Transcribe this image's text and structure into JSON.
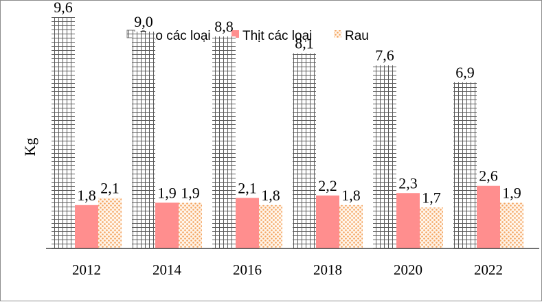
{
  "chart_data": {
    "type": "bar",
    "categories": [
      "2012",
      "2014",
      "2016",
      "2018",
      "2020",
      "2022"
    ],
    "series": [
      {
        "name": "Gạo các loại",
        "values": [
          9.6,
          9.0,
          8.8,
          8.1,
          7.6,
          6.9
        ],
        "labels": [
          "9,6",
          "9,0",
          "8,8",
          "8,1",
          "7,6",
          "6,9"
        ],
        "color": "#595959"
      },
      {
        "name": "Thịt các loại",
        "values": [
          1.8,
          1.9,
          2.1,
          2.2,
          2.3,
          2.6
        ],
        "labels": [
          "1,8",
          "1,9",
          "2,1",
          "2,2",
          "2,3",
          "2,6"
        ],
        "color": "#ff8e8e"
      },
      {
        "name": "Rau",
        "values": [
          2.1,
          1.9,
          1.8,
          1.8,
          1.7,
          1.9
        ],
        "labels": [
          "2,1",
          "1,9",
          "1,8",
          "1,8",
          "1,7",
          "1,9"
        ],
        "color": "#f4b183"
      }
    ],
    "ylabel": "Kg",
    "ylim": [
      0,
      10
    ],
    "grid": false,
    "legend": "top"
  }
}
